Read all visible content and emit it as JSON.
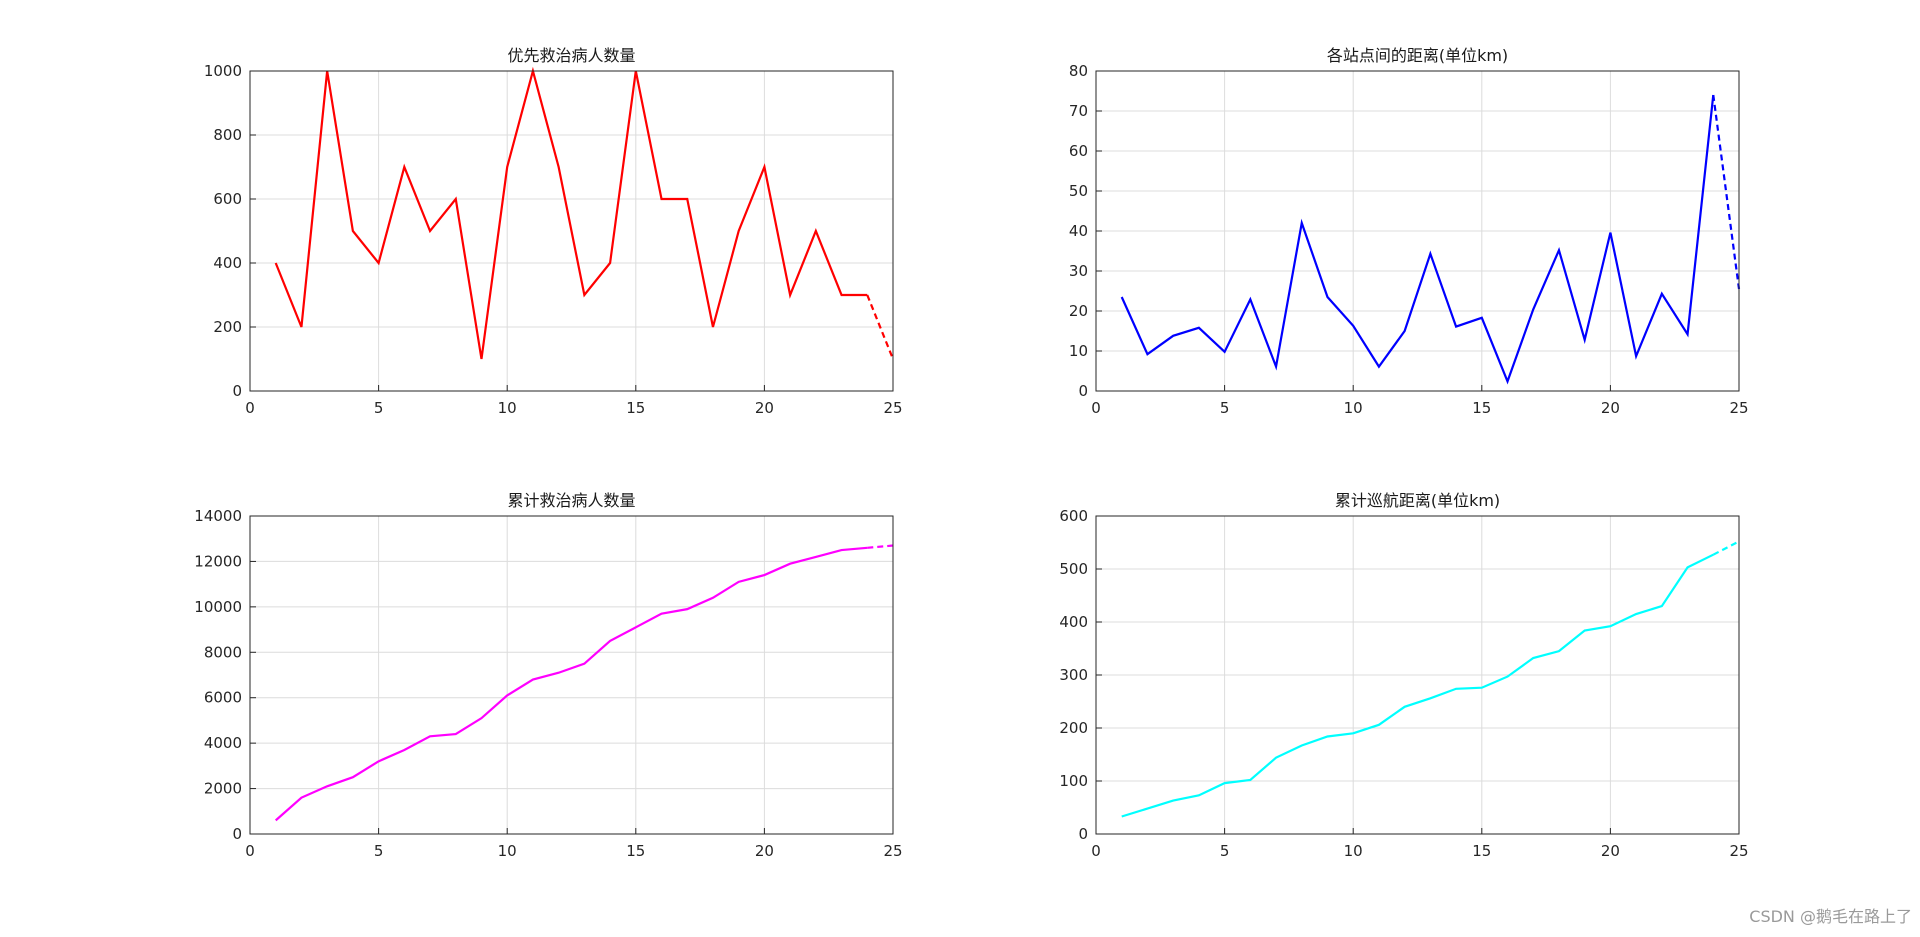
{
  "watermark": "CSDN @鹅毛在路上了",
  "chart_data": [
    {
      "type": "line",
      "title": "优先救治病人数量",
      "xlim": [
        0,
        25
      ],
      "ylim": [
        0,
        1000
      ],
      "xticks": [
        0,
        5,
        10,
        15,
        20,
        25
      ],
      "yticks": [
        0,
        200,
        400,
        600,
        800,
        1000
      ],
      "grid": true,
      "color": "#ff0000",
      "x": [
        1,
        2,
        3,
        4,
        5,
        6,
        7,
        8,
        9,
        10,
        11,
        12,
        13,
        14,
        15,
        16,
        17,
        18,
        19,
        20,
        21,
        22,
        23,
        24,
        25
      ],
      "values": [
        400,
        200,
        1000,
        500,
        400,
        700,
        500,
        600,
        100,
        700,
        1000,
        700,
        300,
        400,
        1000,
        600,
        600,
        200,
        500,
        700,
        300,
        500,
        300,
        300,
        100
      ],
      "dashed_from_index": 23
    },
    {
      "type": "line",
      "title": "各站点间的距离(单位km)",
      "xlim": [
        0,
        25
      ],
      "ylim": [
        0,
        80
      ],
      "xticks": [
        0,
        5,
        10,
        15,
        20,
        25
      ],
      "yticks": [
        0,
        10,
        20,
        30,
        40,
        50,
        60,
        70,
        80
      ],
      "grid": true,
      "color": "#0000ff",
      "x": [
        1,
        2,
        3,
        4,
        5,
        6,
        7,
        8,
        9,
        10,
        11,
        12,
        13,
        14,
        15,
        16,
        17,
        18,
        19,
        20,
        21,
        22,
        23,
        24,
        25
      ],
      "values": [
        23.5,
        9.2,
        13.8,
        15.8,
        9.8,
        22.9,
        6.1,
        42,
        23.5,
        16.3,
        6.1,
        15,
        34.3,
        16.1,
        18.3,
        2.4,
        20.4,
        35.2,
        12.8,
        39.6,
        8.7,
        24.3,
        14.2,
        74,
        25.5
      ],
      "dashed_from_index": 23
    },
    {
      "type": "line",
      "title": "累计救治病人数量",
      "xlim": [
        0,
        25
      ],
      "ylim": [
        0,
        14000
      ],
      "xticks": [
        0,
        5,
        10,
        15,
        20,
        25
      ],
      "yticks": [
        0,
        2000,
        4000,
        6000,
        8000,
        10000,
        12000,
        14000
      ],
      "grid": true,
      "color": "#ff00ff",
      "x": [
        1,
        2,
        3,
        4,
        5,
        6,
        7,
        8,
        9,
        10,
        11,
        12,
        13,
        14,
        15,
        16,
        17,
        18,
        19,
        20,
        21,
        22,
        23,
        24,
        25
      ],
      "values": [
        600,
        1600,
        2100,
        2500,
        3200,
        3700,
        4300,
        4400,
        5100,
        6100,
        6800,
        7100,
        7500,
        8500,
        9100,
        9700,
        9900,
        10400,
        11100,
        11400,
        11900,
        12200,
        12500,
        12600,
        12700
      ],
      "dashed_from_index": 23
    },
    {
      "type": "line",
      "title": "累计巡航距离(单位km)",
      "xlim": [
        0,
        25
      ],
      "ylim": [
        0,
        600
      ],
      "xticks": [
        0,
        5,
        10,
        15,
        20,
        25
      ],
      "yticks": [
        0,
        100,
        200,
        300,
        400,
        500,
        600
      ],
      "grid": true,
      "color": "#00ffff",
      "x": [
        1,
        2,
        3,
        4,
        5,
        6,
        7,
        8,
        9,
        10,
        11,
        12,
        13,
        14,
        15,
        16,
        17,
        18,
        19,
        20,
        21,
        22,
        23,
        24,
        25
      ],
      "values": [
        33,
        48,
        63,
        73,
        96,
        102,
        144,
        167,
        184,
        190,
        206,
        240,
        256,
        274,
        276,
        297,
        332,
        345,
        384,
        392,
        415,
        430,
        503,
        527,
        552
      ],
      "dashed_from_index": 23
    }
  ]
}
